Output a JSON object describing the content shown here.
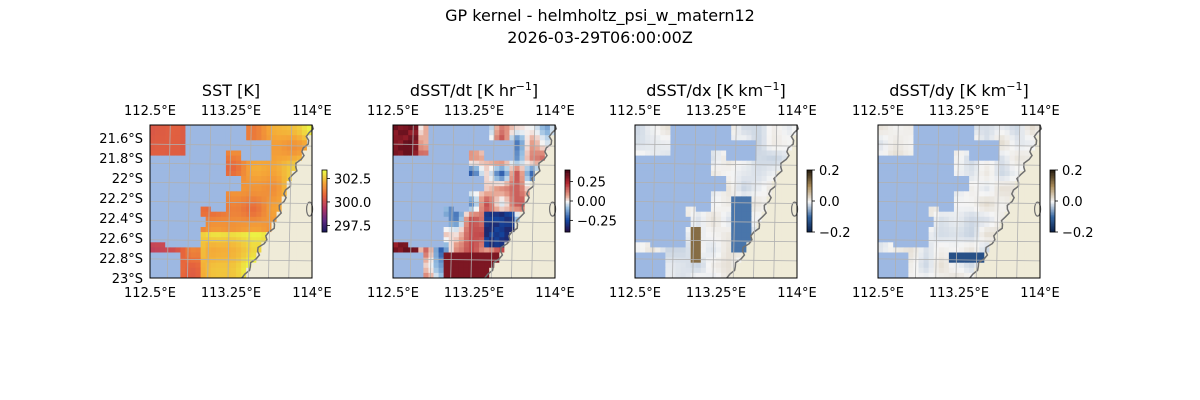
{
  "figure": {
    "title_line1": "GP kernel - helmholtz_psi_w_matern12",
    "title_line2": "2026-03-29T06:00:00Z"
  },
  "colors": {
    "land": "#efebd8",
    "no_data": "#9db8e2",
    "coastline": "#707070",
    "grid": "#b0b0b0"
  },
  "chart_data": [
    {
      "type": "heatmap",
      "title": "SST [K]",
      "colormap": "thermal (dark blue - purple - red - orange - yellow)",
      "lon_ticks": [
        "112.5°E",
        "113.25°E",
        "114°E"
      ],
      "lat_ticks": [
        "21.6°S",
        "21.8°S",
        "22°S",
        "22.2°S",
        "22.4°S",
        "22.6°S",
        "22.8°S",
        "23°S"
      ],
      "colorbar": {
        "ticks": [
          "302.5",
          "300.0",
          "297.5"
        ],
        "tick_values": [
          302.5,
          300.0,
          297.5
        ],
        "range": [
          296.8,
          303.4
        ]
      },
      "xlim": [
        112.5,
        114.0
      ],
      "ylim": [
        -23.0,
        -21.5
      ]
    },
    {
      "type": "heatmap",
      "title": "dSST/dt [K hr",
      "title_sup": "−1",
      "title_end": "]",
      "colormap": "diverging blue-white-red",
      "lon_ticks": [
        "112.5°E",
        "113.25°E",
        "114°E"
      ],
      "colorbar": {
        "ticks": [
          "0.25",
          "0.00",
          "−0.25"
        ],
        "tick_values": [
          0.25,
          0.0,
          -0.25
        ],
        "range": [
          -0.4,
          0.4
        ]
      },
      "xlim": [
        112.5,
        114.0
      ],
      "ylim": [
        -23.0,
        -21.5
      ]
    },
    {
      "type": "heatmap",
      "title": "dSST/dx [K km",
      "title_sup": "−1",
      "title_end": "]",
      "colormap": "diverging blue-white-brown",
      "lon_ticks": [
        "112.5°E",
        "113.25°E",
        "114°E"
      ],
      "colorbar": {
        "ticks": [
          "0.2",
          "0.0",
          "−0.2"
        ],
        "tick_values": [
          0.2,
          0.0,
          -0.2
        ],
        "range": [
          -0.2,
          0.2
        ]
      },
      "xlim": [
        112.5,
        114.0
      ],
      "ylim": [
        -23.0,
        -21.5
      ]
    },
    {
      "type": "heatmap",
      "title": "dSST/dy [K km",
      "title_sup": "−1",
      "title_end": "]",
      "colormap": "diverging blue-white-brown",
      "lon_ticks": [
        "112.5°E",
        "113.25°E",
        "114°E"
      ],
      "colorbar": {
        "ticks": [
          "0.2",
          "0.0",
          "−0.2"
        ],
        "tick_values": [
          0.2,
          0.0,
          -0.2
        ],
        "range": [
          -0.2,
          0.2
        ]
      },
      "xlim": [
        112.5,
        114.0
      ],
      "ylim": [
        -23.0,
        -21.5
      ]
    }
  ]
}
